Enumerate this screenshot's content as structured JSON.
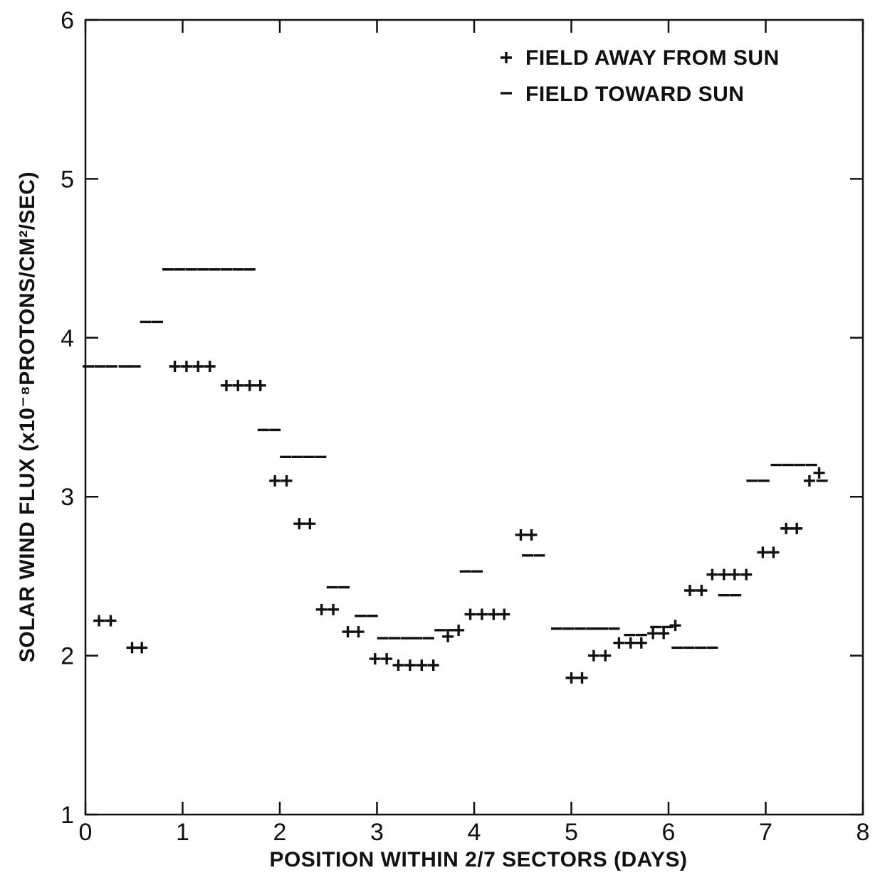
{
  "chart_data": {
    "type": "scatter",
    "xlabel": "POSITION WITHIN 2/7 SECTORS (DAYS)",
    "ylabel": "SOLAR WIND FLUX (x10⁻⁸PROTONS/CM²/SEC)",
    "xlim": [
      0,
      8
    ],
    "ylim": [
      1,
      6
    ],
    "xticks": [
      "0",
      "1",
      "2",
      "3",
      "4",
      "5",
      "6",
      "7",
      "8"
    ],
    "yticks": [
      "1",
      "2",
      "3",
      "4",
      "5",
      "6"
    ],
    "legend_position": "top-right",
    "series": [
      {
        "name": "FIELD AWAY FROM SUN",
        "symbol": "+",
        "points": [
          {
            "x": 0.14,
            "y": 2.22
          },
          {
            "x": 0.26,
            "y": 2.22
          },
          {
            "x": 0.48,
            "y": 2.05
          },
          {
            "x": 0.58,
            "y": 2.05
          },
          {
            "x": 0.92,
            "y": 3.82
          },
          {
            "x": 1.04,
            "y": 3.82
          },
          {
            "x": 1.16,
            "y": 3.82
          },
          {
            "x": 1.28,
            "y": 3.82
          },
          {
            "x": 1.45,
            "y": 3.7
          },
          {
            "x": 1.57,
            "y": 3.7
          },
          {
            "x": 1.69,
            "y": 3.7
          },
          {
            "x": 1.8,
            "y": 3.7
          },
          {
            "x": 1.95,
            "y": 3.1
          },
          {
            "x": 2.07,
            "y": 3.1
          },
          {
            "x": 2.2,
            "y": 2.83
          },
          {
            "x": 2.31,
            "y": 2.83
          },
          {
            "x": 2.43,
            "y": 2.29
          },
          {
            "x": 2.55,
            "y": 2.29
          },
          {
            "x": 2.7,
            "y": 2.15
          },
          {
            "x": 2.81,
            "y": 2.15
          },
          {
            "x": 2.98,
            "y": 1.98
          },
          {
            "x": 3.1,
            "y": 1.98
          },
          {
            "x": 3.22,
            "y": 1.94
          },
          {
            "x": 3.34,
            "y": 1.94
          },
          {
            "x": 3.46,
            "y": 1.94
          },
          {
            "x": 3.58,
            "y": 1.94
          },
          {
            "x": 3.73,
            "y": 2.12
          },
          {
            "x": 3.84,
            "y": 2.16
          },
          {
            "x": 3.96,
            "y": 2.26
          },
          {
            "x": 4.08,
            "y": 2.26
          },
          {
            "x": 4.2,
            "y": 2.26
          },
          {
            "x": 4.31,
            "y": 2.26
          },
          {
            "x": 4.48,
            "y": 2.76
          },
          {
            "x": 4.59,
            "y": 2.76
          },
          {
            "x": 5.0,
            "y": 1.86
          },
          {
            "x": 5.11,
            "y": 1.86
          },
          {
            "x": 5.23,
            "y": 2.0
          },
          {
            "x": 5.35,
            "y": 2.0
          },
          {
            "x": 5.49,
            "y": 2.08
          },
          {
            "x": 5.61,
            "y": 2.08
          },
          {
            "x": 5.72,
            "y": 2.08
          },
          {
            "x": 5.84,
            "y": 2.14
          },
          {
            "x": 5.95,
            "y": 2.14
          },
          {
            "x": 6.07,
            "y": 2.19
          },
          {
            "x": 6.22,
            "y": 2.41
          },
          {
            "x": 6.34,
            "y": 2.41
          },
          {
            "x": 6.45,
            "y": 2.51
          },
          {
            "x": 6.57,
            "y": 2.51
          },
          {
            "x": 6.68,
            "y": 2.51
          },
          {
            "x": 6.8,
            "y": 2.51
          },
          {
            "x": 6.97,
            "y": 2.65
          },
          {
            "x": 7.08,
            "y": 2.65
          },
          {
            "x": 7.21,
            "y": 2.8
          },
          {
            "x": 7.32,
            "y": 2.8
          },
          {
            "x": 7.45,
            "y": 3.1
          },
          {
            "x": 7.55,
            "y": 3.15
          }
        ]
      },
      {
        "name": "FIELD TOWARD SUN",
        "symbol": "−",
        "points": [
          {
            "x": 0.03,
            "y": 3.82
          },
          {
            "x": 0.15,
            "y": 3.82
          },
          {
            "x": 0.27,
            "y": 3.82
          },
          {
            "x": 0.4,
            "y": 3.82
          },
          {
            "x": 0.51,
            "y": 3.82
          },
          {
            "x": 0.62,
            "y": 4.1
          },
          {
            "x": 0.74,
            "y": 4.1
          },
          {
            "x": 0.85,
            "y": 4.43
          },
          {
            "x": 0.97,
            "y": 4.43
          },
          {
            "x": 1.09,
            "y": 4.43
          },
          {
            "x": 1.21,
            "y": 4.43
          },
          {
            "x": 1.33,
            "y": 4.43
          },
          {
            "x": 1.45,
            "y": 4.43
          },
          {
            "x": 1.57,
            "y": 4.43
          },
          {
            "x": 1.69,
            "y": 4.43
          },
          {
            "x": 1.83,
            "y": 3.42
          },
          {
            "x": 1.95,
            "y": 3.42
          },
          {
            "x": 2.06,
            "y": 3.25
          },
          {
            "x": 2.18,
            "y": 3.25
          },
          {
            "x": 2.3,
            "y": 3.25
          },
          {
            "x": 2.42,
            "y": 3.25
          },
          {
            "x": 2.54,
            "y": 2.43
          },
          {
            "x": 2.66,
            "y": 2.43
          },
          {
            "x": 2.83,
            "y": 2.25
          },
          {
            "x": 2.95,
            "y": 2.25
          },
          {
            "x": 3.06,
            "y": 2.11
          },
          {
            "x": 3.18,
            "y": 2.11
          },
          {
            "x": 3.3,
            "y": 2.11
          },
          {
            "x": 3.41,
            "y": 2.11
          },
          {
            "x": 3.53,
            "y": 2.11
          },
          {
            "x": 3.65,
            "y": 2.16
          },
          {
            "x": 3.77,
            "y": 2.16
          },
          {
            "x": 3.91,
            "y": 2.53
          },
          {
            "x": 4.03,
            "y": 2.53
          },
          {
            "x": 4.55,
            "y": 2.63
          },
          {
            "x": 4.67,
            "y": 2.63
          },
          {
            "x": 4.85,
            "y": 2.17
          },
          {
            "x": 4.97,
            "y": 2.17
          },
          {
            "x": 5.09,
            "y": 2.17
          },
          {
            "x": 5.21,
            "y": 2.17
          },
          {
            "x": 5.32,
            "y": 2.17
          },
          {
            "x": 5.44,
            "y": 2.17
          },
          {
            "x": 5.6,
            "y": 2.13
          },
          {
            "x": 5.72,
            "y": 2.13
          },
          {
            "x": 5.87,
            "y": 2.18
          },
          {
            "x": 5.99,
            "y": 2.18
          },
          {
            "x": 6.09,
            "y": 2.05
          },
          {
            "x": 6.21,
            "y": 2.05
          },
          {
            "x": 6.33,
            "y": 2.05
          },
          {
            "x": 6.45,
            "y": 2.05
          },
          {
            "x": 6.57,
            "y": 2.38
          },
          {
            "x": 6.69,
            "y": 2.38
          },
          {
            "x": 6.86,
            "y": 3.1
          },
          {
            "x": 6.98,
            "y": 3.1
          },
          {
            "x": 7.11,
            "y": 3.2
          },
          {
            "x": 7.23,
            "y": 3.2
          },
          {
            "x": 7.35,
            "y": 3.2
          },
          {
            "x": 7.47,
            "y": 3.2
          },
          {
            "x": 7.58,
            "y": 3.1
          }
        ]
      }
    ]
  }
}
